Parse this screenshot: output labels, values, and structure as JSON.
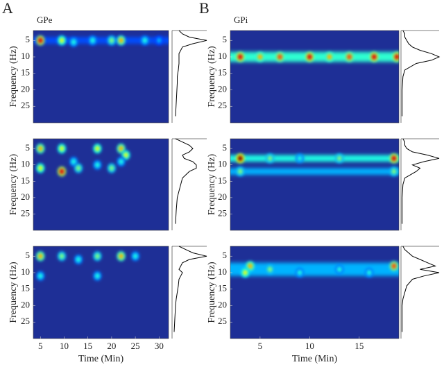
{
  "chart_data": [
    {
      "type": "spectrogram",
      "panel_label": "A",
      "title": "GPe",
      "ylabel": "Frequency (Hz)",
      "xlim": [
        3.5,
        32
      ],
      "ylim": [
        2,
        30
      ],
      "yticks": [
        5,
        10,
        15,
        20,
        25
      ],
      "background_color": "#1e2f96",
      "line_color": "#000000",
      "hotspots": [
        [
          5,
          5,
          0.9
        ],
        [
          9.5,
          5,
          0.6
        ],
        [
          12,
          5.5,
          0.4
        ],
        [
          16,
          5,
          0.4
        ],
        [
          20,
          5,
          0.5
        ],
        [
          22,
          5,
          0.7
        ],
        [
          27,
          5,
          0.4
        ],
        [
          30,
          5,
          0.3
        ]
      ],
      "bands": [
        [
          5,
          2,
          0.2
        ]
      ],
      "profile_freqs": [
        2,
        3,
        4,
        5,
        6,
        7,
        8,
        9,
        10,
        11,
        12,
        14,
        16,
        18,
        20,
        24,
        28
      ],
      "profile": [
        0.2,
        0.3,
        0.5,
        1.0,
        0.6,
        0.3,
        0.25,
        0.2,
        0.2,
        0.2,
        0.2,
        0.18,
        0.15,
        0.15,
        0.14,
        0.12,
        0.1
      ]
    },
    {
      "type": "spectrogram",
      "ylabel": "Frequency (Hz)",
      "xlim": [
        3.5,
        32
      ],
      "ylim": [
        2,
        30
      ],
      "yticks": [
        5,
        10,
        15,
        20,
        25
      ],
      "background_color": "#1e2f96",
      "line_color": "#000000",
      "hotspots": [
        [
          5,
          5,
          0.7
        ],
        [
          5,
          11,
          0.6
        ],
        [
          9.5,
          5,
          0.6
        ],
        [
          9.5,
          12,
          0.9
        ],
        [
          12,
          9,
          0.4
        ],
        [
          13,
          11,
          0.5
        ],
        [
          17,
          5,
          0.6
        ],
        [
          17,
          10,
          0.4
        ],
        [
          20,
          11,
          0.5
        ],
        [
          22,
          5,
          0.7
        ],
        [
          23,
          7,
          0.6
        ],
        [
          22,
          9,
          0.4
        ]
      ],
      "bands": [],
      "profile_freqs": [
        2,
        3,
        4,
        5,
        6,
        7,
        8,
        9,
        10,
        11,
        12,
        14,
        16,
        18,
        20,
        24,
        28
      ],
      "profile": [
        0.1,
        0.3,
        0.5,
        0.6,
        0.5,
        0.3,
        0.35,
        0.6,
        0.7,
        0.7,
        0.5,
        0.3,
        0.25,
        0.2,
        0.15,
        0.12,
        0.1
      ]
    },
    {
      "type": "spectrogram",
      "ylabel": "Frequency (Hz)",
      "xlabel": "Time (Min)",
      "xlim": [
        3.5,
        32
      ],
      "xticks": [
        5,
        10,
        15,
        20,
        25,
        30
      ],
      "ylim": [
        2,
        30
      ],
      "yticks": [
        5,
        10,
        15,
        20,
        25
      ],
      "background_color": "#1e2f96",
      "line_color": "#000000",
      "hotspots": [
        [
          5,
          5,
          0.7
        ],
        [
          5,
          11,
          0.4
        ],
        [
          9.5,
          5,
          0.5
        ],
        [
          13,
          6,
          0.4
        ],
        [
          17,
          5,
          0.5
        ],
        [
          17,
          11,
          0.4
        ],
        [
          22,
          5,
          0.7
        ],
        [
          25,
          5,
          0.4
        ]
      ],
      "bands": [],
      "profile_freqs": [
        2,
        3,
        4,
        5,
        6,
        7,
        8,
        9,
        10,
        11,
        12,
        14,
        16,
        18,
        20,
        24,
        28
      ],
      "profile": [
        0.2,
        0.4,
        0.6,
        1.0,
        0.5,
        0.3,
        0.25,
        0.2,
        0.3,
        0.25,
        0.2,
        0.18,
        0.15,
        0.12,
        0.1,
        0.08,
        0.06
      ]
    },
    {
      "type": "spectrogram",
      "panel_label": "B",
      "title": "GPi",
      "ylabel": "Frequency (Hz)",
      "xlim": [
        2,
        19
      ],
      "ylim": [
        2,
        30
      ],
      "yticks": [
        5,
        10,
        15,
        20,
        25
      ],
      "background_color": "#1e2f96",
      "line_color": "#000000",
      "hotspots": [
        [
          3,
          10,
          0.9
        ],
        [
          5,
          10,
          0.7
        ],
        [
          7,
          10,
          0.8
        ],
        [
          10,
          10,
          0.9
        ],
        [
          12,
          10,
          0.7
        ],
        [
          14,
          10,
          0.8
        ],
        [
          16.5,
          10,
          0.9
        ],
        [
          18.8,
          10,
          0.9
        ]
      ],
      "bands": [
        [
          10,
          3,
          0.42
        ]
      ],
      "profile_freqs": [
        2,
        3,
        4,
        5,
        6,
        7,
        8,
        9,
        10,
        11,
        12,
        14,
        16,
        18,
        20,
        24,
        28
      ],
      "profile": [
        0.05,
        0.1,
        0.1,
        0.15,
        0.2,
        0.3,
        0.5,
        0.8,
        1.0,
        0.8,
        0.4,
        0.1,
        0.05,
        0.04,
        0.03,
        0.03,
        0.03
      ]
    },
    {
      "type": "spectrogram",
      "ylabel": "Frequency (Hz)",
      "xlim": [
        2,
        19
      ],
      "ylim": [
        2,
        30
      ],
      "yticks": [
        5,
        10,
        15,
        20,
        25
      ],
      "background_color": "#1e2f96",
      "line_color": "#000000",
      "hotspots": [
        [
          3,
          8,
          1.0
        ],
        [
          6,
          8,
          0.5
        ],
        [
          9,
          8,
          0.4
        ],
        [
          13,
          8,
          0.5
        ],
        [
          18.5,
          8,
          0.9
        ],
        [
          3,
          12,
          0.5
        ],
        [
          18.5,
          12,
          0.5
        ]
      ],
      "bands": [
        [
          8,
          2,
          0.4
        ],
        [
          12,
          2,
          0.3
        ]
      ],
      "profile_freqs": [
        2,
        3,
        4,
        5,
        6,
        7,
        8,
        9,
        10,
        11,
        12,
        14,
        16,
        18,
        20,
        24,
        28
      ],
      "profile": [
        0.05,
        0.1,
        0.1,
        0.15,
        0.3,
        0.7,
        1.0,
        0.6,
        0.3,
        0.5,
        0.4,
        0.1,
        0.05,
        0.04,
        0.03,
        0.03,
        0.03
      ]
    },
    {
      "type": "spectrogram",
      "ylabel": "Frequency (Hz)",
      "xlabel": "Time (Min)",
      "xlim": [
        2,
        19
      ],
      "xticks": [
        5,
        10,
        15
      ],
      "ylim": [
        2,
        30
      ],
      "yticks": [
        5,
        10,
        15,
        20,
        25
      ],
      "background_color": "#1e2f96",
      "line_color": "#000000",
      "hotspots": [
        [
          4,
          8,
          0.7
        ],
        [
          3.5,
          10,
          0.6
        ],
        [
          6,
          9,
          0.5
        ],
        [
          9,
          10,
          0.4
        ],
        [
          13,
          9,
          0.4
        ],
        [
          16,
          10,
          0.4
        ],
        [
          18.5,
          8,
          0.8
        ]
      ],
      "bands": [
        [
          9,
          4,
          0.3
        ]
      ],
      "profile_freqs": [
        2,
        3,
        4,
        5,
        6,
        7,
        8,
        9,
        10,
        11,
        12,
        14,
        16,
        18,
        20,
        24,
        28
      ],
      "profile": [
        0.05,
        0.1,
        0.2,
        0.3,
        0.5,
        0.7,
        0.9,
        0.5,
        1.0,
        0.6,
        0.3,
        0.15,
        0.1,
        0.05,
        0.03,
        0.03,
        0.03
      ]
    }
  ]
}
